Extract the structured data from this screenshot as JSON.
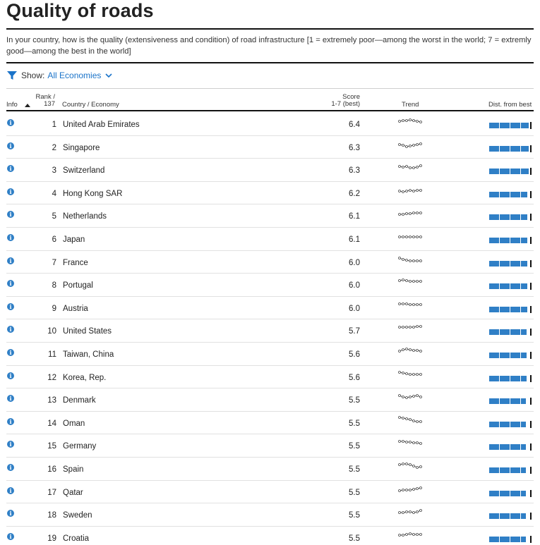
{
  "page": {
    "title": "Quality of roads",
    "description": "In your country, how is the quality (extensiveness and condition) of road infrastructure [1 = extremely poor—among the worst in the world; 7 = extremly good—among the best in the world]"
  },
  "filter": {
    "show_label": "Show:",
    "selected": "All Economies",
    "filter_icon": "funnel-icon",
    "dropdown_icon": "chevron-down-icon",
    "accent_color": "#1a73c9"
  },
  "table": {
    "headers": {
      "info": "Info",
      "rank_line1": "Rank /",
      "rank_line2": "137",
      "country": "Country / Economy",
      "score_line1": "Score",
      "score_line2": "1-7 (best)",
      "trend": "Trend",
      "dist": "Dist. from best"
    },
    "sort_icon": "sort-up-icon",
    "info_icon": "info-icon",
    "bar_color": "#2f7fc6",
    "score_min": 1,
    "score_max": 7,
    "rows": [
      {
        "rank": "1",
        "country": "United Arab Emirates",
        "score": "6.4",
        "score_value": 6.4
      },
      {
        "rank": "2",
        "country": "Singapore",
        "score": "6.3",
        "score_value": 6.3
      },
      {
        "rank": "3",
        "country": "Switzerland",
        "score": "6.3",
        "score_value": 6.3
      },
      {
        "rank": "4",
        "country": "Hong Kong SAR",
        "score": "6.2",
        "score_value": 6.2
      },
      {
        "rank": "5",
        "country": "Netherlands",
        "score": "6.1",
        "score_value": 6.1
      },
      {
        "rank": "6",
        "country": "Japan",
        "score": "6.1",
        "score_value": 6.1
      },
      {
        "rank": "7",
        "country": "France",
        "score": "6.0",
        "score_value": 6.0
      },
      {
        "rank": "8",
        "country": "Portugal",
        "score": "6.0",
        "score_value": 6.0
      },
      {
        "rank": "9",
        "country": "Austria",
        "score": "6.0",
        "score_value": 6.0
      },
      {
        "rank": "10",
        "country": "United States",
        "score": "5.7",
        "score_value": 5.7
      },
      {
        "rank": "11",
        "country": "Taiwan, China",
        "score": "5.6",
        "score_value": 5.6
      },
      {
        "rank": "12",
        "country": "Korea, Rep.",
        "score": "5.6",
        "score_value": 5.6
      },
      {
        "rank": "13",
        "country": "Denmark",
        "score": "5.5",
        "score_value": 5.5
      },
      {
        "rank": "14",
        "country": "Oman",
        "score": "5.5",
        "score_value": 5.5
      },
      {
        "rank": "15",
        "country": "Germany",
        "score": "5.5",
        "score_value": 5.5
      },
      {
        "rank": "16",
        "country": "Spain",
        "score": "5.5",
        "score_value": 5.5
      },
      {
        "rank": "17",
        "country": "Qatar",
        "score": "5.5",
        "score_value": 5.5
      },
      {
        "rank": "18",
        "country": "Sweden",
        "score": "5.5",
        "score_value": 5.5
      },
      {
        "rank": "19",
        "country": "Croatia",
        "score": "5.5",
        "score_value": 5.5
      }
    ]
  }
}
